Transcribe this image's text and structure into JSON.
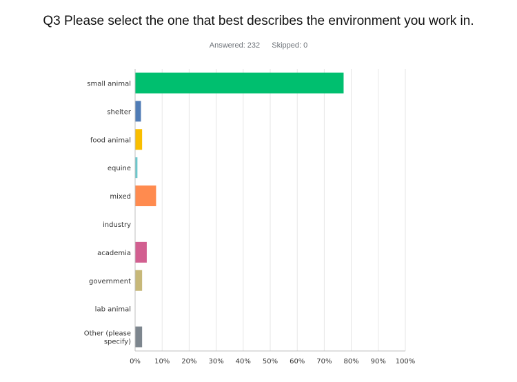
{
  "header": {
    "title": "Q3 Please select the one that best describes the environment you work in.",
    "answered": "Answered: 232",
    "skipped": "Skipped: 0"
  },
  "chart_data": {
    "type": "bar",
    "orientation": "horizontal",
    "categories": [
      "small animal",
      "shelter",
      "food animal",
      "equine",
      "mixed",
      "industry",
      "academia",
      "government",
      "lab animal",
      "Other (please specify)"
    ],
    "category_lines": [
      [
        "small animal"
      ],
      [
        "shelter"
      ],
      [
        "food animal"
      ],
      [
        "equine"
      ],
      [
        "mixed"
      ],
      [
        "industry"
      ],
      [
        "academia"
      ],
      [
        "government"
      ],
      [
        "lab animal"
      ],
      [
        "Other (please",
        "specify)"
      ]
    ],
    "values": [
      77.16,
      2.16,
      2.59,
      0.86,
      7.76,
      0.0,
      4.31,
      2.59,
      0.0,
      2.59
    ],
    "colors": [
      "#00bf6f",
      "#507cb6",
      "#f9be00",
      "#6bc8cd",
      "#ff8b4f",
      "#7f7fff",
      "#d25f90",
      "#c7b879",
      "#b5a4d3",
      "#7d868e"
    ],
    "xlim": [
      0,
      100
    ],
    "xticks": [
      "0%",
      "10%",
      "20%",
      "30%",
      "40%",
      "50%",
      "60%",
      "70%",
      "80%",
      "90%",
      "100%"
    ],
    "grid": true
  }
}
